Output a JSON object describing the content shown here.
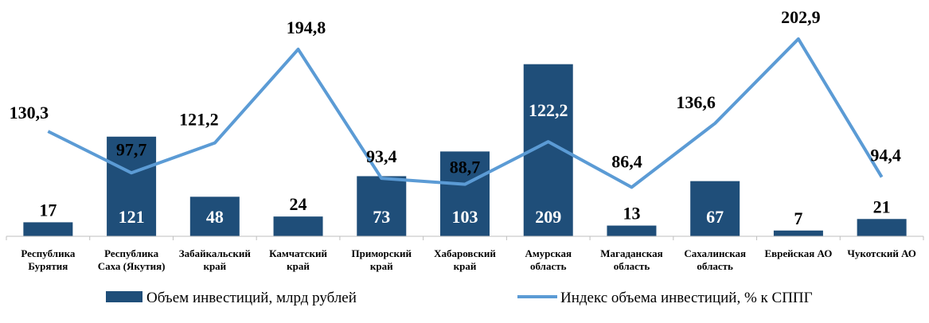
{
  "chart_data": {
    "type": "bar",
    "categories": [
      [
        "Республика",
        "Бурятия"
      ],
      [
        "Республика",
        "Саха (Якутия)"
      ],
      [
        "Забайкальский",
        "край"
      ],
      [
        "Камчатский",
        "край"
      ],
      [
        "Приморский",
        "край"
      ],
      [
        "Хабаровский",
        "край"
      ],
      [
        "Амурская",
        "область"
      ],
      [
        "Магаданская",
        "область"
      ],
      [
        "Сахалинская",
        "область"
      ],
      [
        "Еврейская АО"
      ],
      [
        "Чукотский АО"
      ]
    ],
    "series": [
      {
        "name": "Объем инвестиций, млрд рублей",
        "type": "bar",
        "axis": "left",
        "values": [
          17,
          121,
          48,
          24,
          73,
          103,
          209,
          13,
          67,
          7,
          21
        ],
        "value_labels": [
          "17",
          "121",
          "48",
          "24",
          "73",
          "103",
          "209",
          "13",
          "67",
          "7",
          "21"
        ],
        "color": "#1f4e79"
      },
      {
        "name": "Индекс объема инвестиций, % к СППГ",
        "type": "line",
        "axis": "right",
        "values": [
          130.3,
          97.7,
          121.2,
          194.8,
          93.4,
          88.7,
          122.2,
          86.4,
          136.6,
          202.9,
          94.4
        ],
        "value_labels": [
          "130,3",
          "97,7",
          "121,2",
          "194,8",
          "93,4",
          "88,7",
          "122,2",
          "86,4",
          "136,6",
          "202,9",
          "94,4"
        ],
        "color": "#5b9bd5"
      }
    ],
    "bar_ylim": [
      0,
      240
    ],
    "line_ylim": [
      30,
      215
    ],
    "bar_value_label_colors": [
      "#000000",
      "#ffffff",
      "#ffffff",
      "#000000",
      "#ffffff",
      "#ffffff",
      "#ffffff",
      "#000000",
      "#ffffff",
      "#000000",
      "#000000"
    ],
    "legend_position": "bottom",
    "grid": false
  }
}
